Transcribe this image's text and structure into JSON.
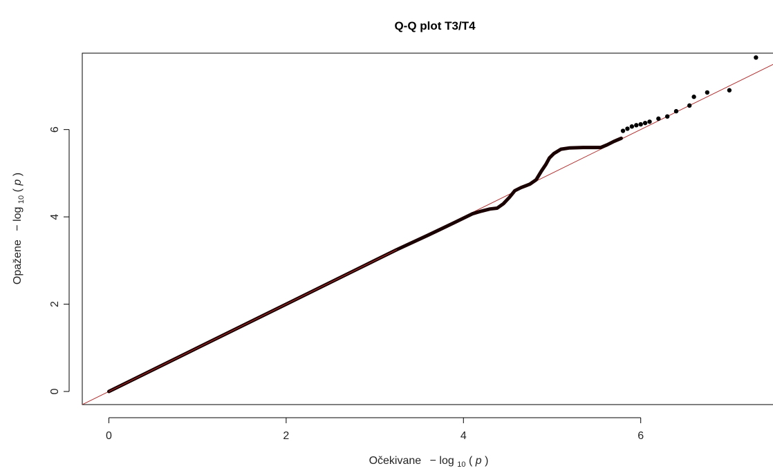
{
  "chart_data": {
    "type": "scatter",
    "title": "Q-Q plot T3/T4",
    "xlabel": {
      "prefix": "Očekivane",
      "minus": "−",
      "func": "log",
      "sub": "10",
      "open": "(",
      "var": "p",
      "close": ")"
    },
    "ylabel": {
      "prefix": "Opažene",
      "minus": "−",
      "func": "log",
      "sub": "10",
      "open": "(",
      "var": "p",
      "close": ")"
    },
    "xlim": [
      -0.3,
      7.5
    ],
    "ylim": [
      -0.3,
      7.75
    ],
    "x_ticks": [
      0,
      2,
      4,
      6
    ],
    "y_ticks": [
      0,
      2,
      4,
      6
    ],
    "grid": false,
    "colors": {
      "points": "#000000",
      "reference_line": "#b03030",
      "trace": "#1a0000"
    },
    "reference_line": {
      "slope": 1,
      "intercept": 0
    },
    "bulk_trace": [
      [
        0.0,
        0.0
      ],
      [
        1.0,
        1.0
      ],
      [
        2.0,
        2.0
      ],
      [
        3.0,
        3.0
      ],
      [
        3.25,
        3.25
      ],
      [
        3.6,
        3.58
      ],
      [
        3.9,
        3.87
      ],
      [
        4.1,
        4.07
      ],
      [
        4.2,
        4.13
      ],
      [
        4.3,
        4.18
      ],
      [
        4.38,
        4.2
      ],
      [
        4.45,
        4.3
      ],
      [
        4.52,
        4.45
      ],
      [
        4.58,
        4.6
      ],
      [
        4.65,
        4.67
      ],
      [
        4.75,
        4.75
      ],
      [
        4.82,
        4.85
      ],
      [
        4.88,
        5.05
      ],
      [
        4.93,
        5.2
      ],
      [
        4.97,
        5.35
      ],
      [
        5.02,
        5.45
      ],
      [
        5.1,
        5.55
      ],
      [
        5.2,
        5.58
      ],
      [
        5.35,
        5.59
      ],
      [
        5.55,
        5.59
      ],
      [
        5.62,
        5.65
      ],
      [
        5.7,
        5.73
      ],
      [
        5.78,
        5.8
      ]
    ],
    "points": [
      [
        5.8,
        5.97
      ],
      [
        5.85,
        6.02
      ],
      [
        5.9,
        6.07
      ],
      [
        5.95,
        6.1
      ],
      [
        6.0,
        6.12
      ],
      [
        6.05,
        6.15
      ],
      [
        6.1,
        6.18
      ],
      [
        6.2,
        6.25
      ],
      [
        6.3,
        6.3
      ],
      [
        6.4,
        6.42
      ],
      [
        6.55,
        6.55
      ],
      [
        6.6,
        6.75
      ],
      [
        6.75,
        6.85
      ],
      [
        7.0,
        6.9
      ],
      [
        7.3,
        7.65
      ]
    ]
  }
}
